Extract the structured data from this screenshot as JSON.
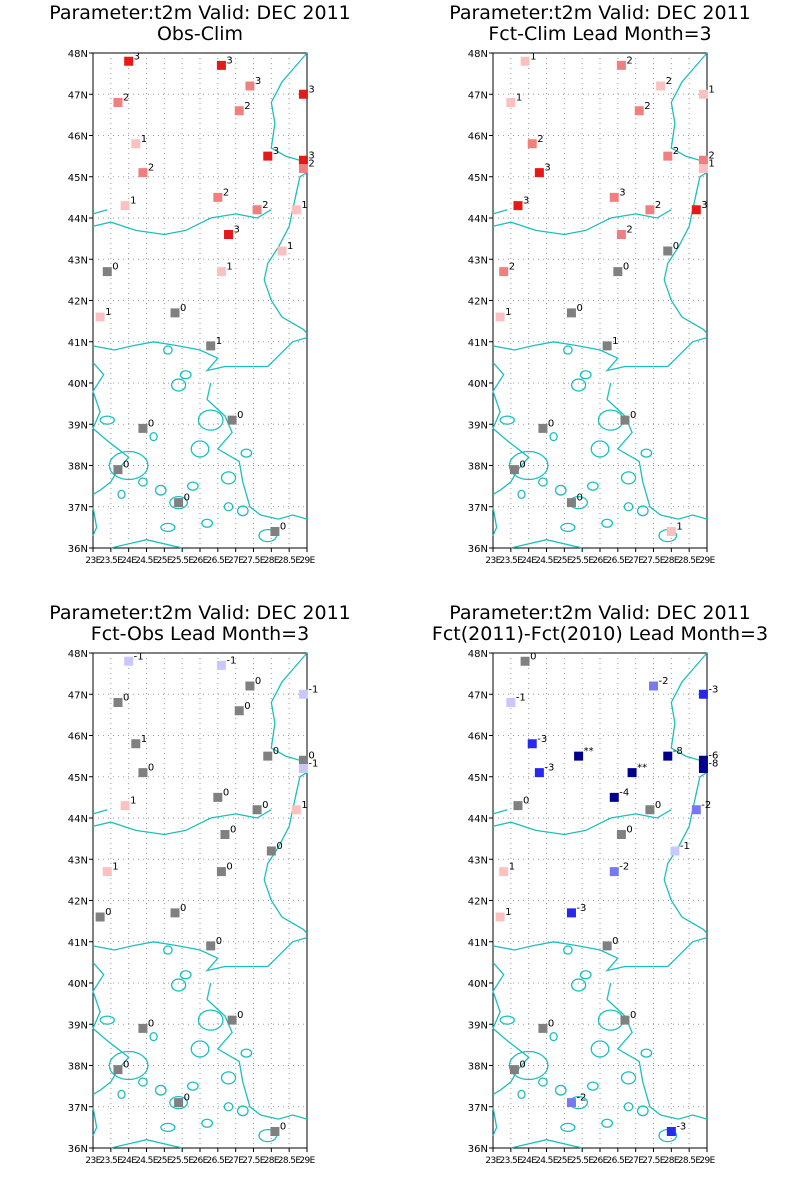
{
  "chart_data": [
    {
      "type": "map-stations",
      "title": "Parameter:t2m Valid: DEC 2011",
      "subtitle": "Obs-Clim",
      "lat_range": [
        36,
        48
      ],
      "lon_range": [
        23,
        29
      ],
      "lat_ticks": [
        "36N",
        "37N",
        "38N",
        "39N",
        "40N",
        "41N",
        "42N",
        "43N",
        "44N",
        "45N",
        "46N",
        "47N",
        "48N"
      ],
      "lon_ticks": [
        "23E",
        "23.5E",
        "24E",
        "24.5E",
        "25E",
        "25.5E",
        "26E",
        "26.5E",
        "27E",
        "27.5E",
        "28E",
        "28.5E",
        "29E"
      ],
      "points": [
        {
          "lon": 24.0,
          "lat": 47.8,
          "label": "3",
          "color": "#e61919"
        },
        {
          "lon": 23.7,
          "lat": 46.8,
          "label": "2",
          "color": "#f08080"
        },
        {
          "lon": 26.6,
          "lat": 47.7,
          "label": "3",
          "color": "#e61919"
        },
        {
          "lon": 27.4,
          "lat": 47.2,
          "label": "3",
          "color": "#f08080"
        },
        {
          "lon": 27.1,
          "lat": 46.6,
          "label": "2",
          "color": "#f08080"
        },
        {
          "lon": 28.9,
          "lat": 47.0,
          "label": "3",
          "color": "#e61919"
        },
        {
          "lon": 24.2,
          "lat": 45.8,
          "label": "1",
          "color": "#fbc0c0"
        },
        {
          "lon": 24.4,
          "lat": 45.1,
          "label": "2",
          "color": "#f08080"
        },
        {
          "lon": 27.9,
          "lat": 45.5,
          "label": "3",
          "color": "#e61919"
        },
        {
          "lon": 28.9,
          "lat": 45.4,
          "label": "3",
          "color": "#e61919"
        },
        {
          "lon": 28.9,
          "lat": 45.2,
          "label": "2",
          "color": "#f08080"
        },
        {
          "lon": 23.9,
          "lat": 44.3,
          "label": "1",
          "color": "#fbc0c0"
        },
        {
          "lon": 26.5,
          "lat": 44.5,
          "label": "2",
          "color": "#f08080"
        },
        {
          "lon": 27.6,
          "lat": 44.2,
          "label": "2",
          "color": "#f08080"
        },
        {
          "lon": 28.7,
          "lat": 44.2,
          "label": "1",
          "color": "#fbc0c0"
        },
        {
          "lon": 26.8,
          "lat": 43.6,
          "label": "3",
          "color": "#e61919"
        },
        {
          "lon": 28.3,
          "lat": 43.2,
          "label": "1",
          "color": "#fbc0c0"
        },
        {
          "lon": 23.4,
          "lat": 42.7,
          "label": "0",
          "color": "#808080"
        },
        {
          "lon": 26.6,
          "lat": 42.7,
          "label": "1",
          "color": "#fbc0c0"
        },
        {
          "lon": 23.2,
          "lat": 41.6,
          "label": "1",
          "color": "#fbc0c0"
        },
        {
          "lon": 25.3,
          "lat": 41.7,
          "label": "0",
          "color": "#808080"
        },
        {
          "lon": 26.3,
          "lat": 40.9,
          "label": "1",
          "color": "#808080"
        },
        {
          "lon": 24.4,
          "lat": 38.9,
          "label": "0",
          "color": "#808080"
        },
        {
          "lon": 26.9,
          "lat": 39.1,
          "label": "0",
          "color": "#808080"
        },
        {
          "lon": 23.7,
          "lat": 37.9,
          "label": "0",
          "color": "#808080"
        },
        {
          "lon": 25.4,
          "lat": 37.1,
          "label": "0",
          "color": "#808080"
        },
        {
          "lon": 28.1,
          "lat": 36.4,
          "label": "0",
          "color": "#808080"
        }
      ]
    },
    {
      "type": "map-stations",
      "title": "Parameter:t2m Valid: DEC 2011",
      "subtitle": "Fct-Clim Lead Month=3",
      "lat_range": [
        36,
        48
      ],
      "lon_range": [
        23,
        29
      ],
      "lat_ticks": [
        "36N",
        "37N",
        "38N",
        "39N",
        "40N",
        "41N",
        "42N",
        "43N",
        "44N",
        "45N",
        "46N",
        "47N",
        "48N"
      ],
      "lon_ticks": [
        "23E",
        "23.5E",
        "24E",
        "24.5E",
        "25E",
        "25.5E",
        "26E",
        "26.5E",
        "27E",
        "27.5E",
        "28E",
        "28.5E",
        "29E"
      ],
      "points": [
        {
          "lon": 23.9,
          "lat": 47.8,
          "label": "1",
          "color": "#fbc0c0"
        },
        {
          "lon": 23.5,
          "lat": 46.8,
          "label": "1",
          "color": "#fbc0c0"
        },
        {
          "lon": 26.6,
          "lat": 47.7,
          "label": "2",
          "color": "#f08080"
        },
        {
          "lon": 27.7,
          "lat": 47.2,
          "label": "2",
          "color": "#fbc0c0"
        },
        {
          "lon": 27.1,
          "lat": 46.6,
          "label": "2",
          "color": "#f08080"
        },
        {
          "lon": 28.9,
          "lat": 47.0,
          "label": "1",
          "color": "#fbc0c0"
        },
        {
          "lon": 24.1,
          "lat": 45.8,
          "label": "2",
          "color": "#f08080"
        },
        {
          "lon": 24.3,
          "lat": 45.1,
          "label": "3",
          "color": "#e61919"
        },
        {
          "lon": 27.9,
          "lat": 45.5,
          "label": "2",
          "color": "#f08080"
        },
        {
          "lon": 28.9,
          "lat": 45.4,
          "label": "2",
          "color": "#f08080"
        },
        {
          "lon": 28.9,
          "lat": 45.2,
          "label": "1",
          "color": "#fbc0c0"
        },
        {
          "lon": 23.7,
          "lat": 44.3,
          "label": "3",
          "color": "#e61919"
        },
        {
          "lon": 26.4,
          "lat": 44.5,
          "label": "3",
          "color": "#f08080"
        },
        {
          "lon": 27.4,
          "lat": 44.2,
          "label": "2",
          "color": "#f08080"
        },
        {
          "lon": 28.7,
          "lat": 44.2,
          "label": "3",
          "color": "#e61919"
        },
        {
          "lon": 26.6,
          "lat": 43.6,
          "label": "2",
          "color": "#f08080"
        },
        {
          "lon": 27.9,
          "lat": 43.2,
          "label": "0",
          "color": "#808080"
        },
        {
          "lon": 23.3,
          "lat": 42.7,
          "label": "2",
          "color": "#f08080"
        },
        {
          "lon": 26.5,
          "lat": 42.7,
          "label": "0",
          "color": "#808080"
        },
        {
          "lon": 23.2,
          "lat": 41.6,
          "label": "1",
          "color": "#fbc0c0"
        },
        {
          "lon": 25.2,
          "lat": 41.7,
          "label": "0",
          "color": "#808080"
        },
        {
          "lon": 26.2,
          "lat": 40.9,
          "label": "1",
          "color": "#808080"
        },
        {
          "lon": 24.4,
          "lat": 38.9,
          "label": "0",
          "color": "#808080"
        },
        {
          "lon": 26.7,
          "lat": 39.1,
          "label": "0",
          "color": "#808080"
        },
        {
          "lon": 23.6,
          "lat": 37.9,
          "label": "0",
          "color": "#808080"
        },
        {
          "lon": 25.2,
          "lat": 37.1,
          "label": "0",
          "color": "#808080"
        },
        {
          "lon": 28.0,
          "lat": 36.4,
          "label": "1",
          "color": "#fbc0c0"
        }
      ]
    },
    {
      "type": "map-stations",
      "title": "Parameter:t2m Valid: DEC 2011",
      "subtitle": "Fct-Obs Lead Month=3",
      "lat_range": [
        36,
        48
      ],
      "lon_range": [
        23,
        29
      ],
      "lat_ticks": [
        "36N",
        "37N",
        "38N",
        "39N",
        "40N",
        "41N",
        "42N",
        "43N",
        "44N",
        "45N",
        "46N",
        "47N",
        "48N"
      ],
      "lon_ticks": [
        "23E",
        "23.5E",
        "24E",
        "24.5E",
        "25E",
        "25.5E",
        "26E",
        "26.5E",
        "27E",
        "27.5E",
        "28E",
        "28.5E",
        "29E"
      ],
      "points": [
        {
          "lon": 24.0,
          "lat": 47.8,
          "label": "-1",
          "color": "#c8c8ff"
        },
        {
          "lon": 23.7,
          "lat": 46.8,
          "label": "0",
          "color": "#808080"
        },
        {
          "lon": 26.6,
          "lat": 47.7,
          "label": "-1",
          "color": "#c8c8ff"
        },
        {
          "lon": 27.4,
          "lat": 47.2,
          "label": "0",
          "color": "#808080"
        },
        {
          "lon": 27.1,
          "lat": 46.6,
          "label": "0",
          "color": "#808080"
        },
        {
          "lon": 28.9,
          "lat": 47.0,
          "label": "-1",
          "color": "#c8c8ff"
        },
        {
          "lon": 24.2,
          "lat": 45.8,
          "label": "1",
          "color": "#808080"
        },
        {
          "lon": 24.4,
          "lat": 45.1,
          "label": "0",
          "color": "#808080"
        },
        {
          "lon": 27.9,
          "lat": 45.5,
          "label": "0",
          "color": "#808080"
        },
        {
          "lon": 28.9,
          "lat": 45.4,
          "label": "0",
          "color": "#808080"
        },
        {
          "lon": 28.9,
          "lat": 45.2,
          "label": "-1",
          "color": "#c8c8ff"
        },
        {
          "lon": 23.9,
          "lat": 44.3,
          "label": "1",
          "color": "#fbc0c0"
        },
        {
          "lon": 26.5,
          "lat": 44.5,
          "label": "0",
          "color": "#808080"
        },
        {
          "lon": 27.6,
          "lat": 44.2,
          "label": "0",
          "color": "#808080"
        },
        {
          "lon": 28.7,
          "lat": 44.2,
          "label": "1",
          "color": "#fbc0c0"
        },
        {
          "lon": 26.7,
          "lat": 43.6,
          "label": "0",
          "color": "#808080"
        },
        {
          "lon": 28.0,
          "lat": 43.2,
          "label": "0",
          "color": "#808080"
        },
        {
          "lon": 23.4,
          "lat": 42.7,
          "label": "1",
          "color": "#fbc0c0"
        },
        {
          "lon": 26.6,
          "lat": 42.7,
          "label": "0",
          "color": "#808080"
        },
        {
          "lon": 23.2,
          "lat": 41.6,
          "label": "0",
          "color": "#808080"
        },
        {
          "lon": 25.3,
          "lat": 41.7,
          "label": "0",
          "color": "#808080"
        },
        {
          "lon": 26.3,
          "lat": 40.9,
          "label": "0",
          "color": "#808080"
        },
        {
          "lon": 24.4,
          "lat": 38.9,
          "label": "0",
          "color": "#808080"
        },
        {
          "lon": 26.9,
          "lat": 39.1,
          "label": "0",
          "color": "#808080"
        },
        {
          "lon": 23.7,
          "lat": 37.9,
          "label": "0",
          "color": "#808080"
        },
        {
          "lon": 25.4,
          "lat": 37.1,
          "label": "0",
          "color": "#808080"
        },
        {
          "lon": 28.1,
          "lat": 36.4,
          "label": "0",
          "color": "#808080"
        }
      ]
    },
    {
      "type": "map-stations",
      "title": "Parameter:t2m Valid: DEC 2011",
      "subtitle": "Fct(2011)-Fct(2010) Lead Month=3",
      "lat_range": [
        36,
        48
      ],
      "lon_range": [
        23,
        29
      ],
      "lat_ticks": [
        "36N",
        "37N",
        "38N",
        "39N",
        "40N",
        "41N",
        "42N",
        "43N",
        "44N",
        "45N",
        "46N",
        "47N",
        "48N"
      ],
      "lon_ticks": [
        "23E",
        "23.5E",
        "24E",
        "24.5E",
        "25E",
        "25.5E",
        "26E",
        "26.5E",
        "27E",
        "27.5E",
        "28E",
        "28.5E",
        "29E"
      ],
      "points": [
        {
          "lon": 23.9,
          "lat": 47.8,
          "label": "0",
          "color": "#808080"
        },
        {
          "lon": 23.5,
          "lat": 46.8,
          "label": "-1",
          "color": "#c8c8ff"
        },
        {
          "lon": 27.5,
          "lat": 47.2,
          "label": "-2",
          "color": "#7878f0"
        },
        {
          "lon": 28.9,
          "lat": 47.0,
          "label": "-3",
          "color": "#2828f0"
        },
        {
          "lon": 24.1,
          "lat": 45.8,
          "label": "-3",
          "color": "#2828f0"
        },
        {
          "lon": 24.3,
          "lat": 45.1,
          "label": "-3",
          "color": "#2828f0"
        },
        {
          "lon": 25.4,
          "lat": 45.5,
          "label": "**",
          "color": "#00008c"
        },
        {
          "lon": 26.9,
          "lat": 45.1,
          "label": "**",
          "color": "#00008c"
        },
        {
          "lon": 27.9,
          "lat": 45.5,
          "label": "-8",
          "color": "#00008c"
        },
        {
          "lon": 28.9,
          "lat": 45.4,
          "label": "-6",
          "color": "#00008c"
        },
        {
          "lon": 28.9,
          "lat": 45.2,
          "label": "-8",
          "color": "#00008c"
        },
        {
          "lon": 26.4,
          "lat": 44.5,
          "label": "-4",
          "color": "#00008c"
        },
        {
          "lon": 23.7,
          "lat": 44.3,
          "label": "0",
          "color": "#808080"
        },
        {
          "lon": 27.4,
          "lat": 44.2,
          "label": "0",
          "color": "#808080"
        },
        {
          "lon": 28.7,
          "lat": 44.2,
          "label": "-2",
          "color": "#7878f0"
        },
        {
          "lon": 26.6,
          "lat": 43.6,
          "label": "0",
          "color": "#808080"
        },
        {
          "lon": 28.1,
          "lat": 43.2,
          "label": "-1",
          "color": "#c8c8ff"
        },
        {
          "lon": 23.3,
          "lat": 42.7,
          "label": "1",
          "color": "#fbc0c0"
        },
        {
          "lon": 26.4,
          "lat": 42.7,
          "label": "-2",
          "color": "#7878f0"
        },
        {
          "lon": 23.2,
          "lat": 41.6,
          "label": "1",
          "color": "#fbc0c0"
        },
        {
          "lon": 25.2,
          "lat": 41.7,
          "label": "-3",
          "color": "#2828f0"
        },
        {
          "lon": 26.2,
          "lat": 40.9,
          "label": "0",
          "color": "#808080"
        },
        {
          "lon": 24.4,
          "lat": 38.9,
          "label": "0",
          "color": "#808080"
        },
        {
          "lon": 26.7,
          "lat": 39.1,
          "label": "0",
          "color": "#808080"
        },
        {
          "lon": 23.6,
          "lat": 37.9,
          "label": "0",
          "color": "#808080"
        },
        {
          "lon": 25.2,
          "lat": 37.1,
          "label": "-2",
          "color": "#7878f0"
        },
        {
          "lon": 28.0,
          "lat": 36.4,
          "label": "-3",
          "color": "#2828f0"
        }
      ]
    }
  ]
}
